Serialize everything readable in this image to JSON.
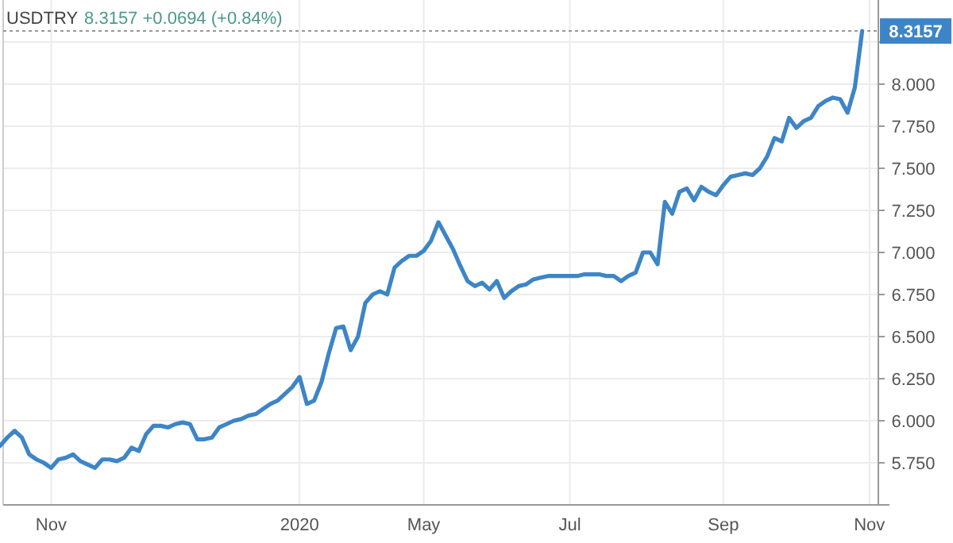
{
  "chart_data": {
    "type": "line",
    "title": "USDTRY",
    "subtitle": "8.3157 +0.0694 (+0.84%)",
    "categories": [
      null,
      null,
      null,
      null,
      null,
      null,
      null,
      "Nov",
      null,
      null,
      null,
      null,
      null,
      null,
      null,
      null,
      null,
      null,
      null,
      null,
      null,
      null,
      null,
      null,
      null,
      null,
      null,
      null,
      null,
      null,
      null,
      null,
      null,
      null,
      null,
      null,
      null,
      null,
      null,
      null,
      null,
      "2020",
      null,
      null,
      null,
      null,
      null,
      null,
      null,
      null,
      null,
      null,
      null,
      null,
      null,
      null,
      null,
      null,
      "May",
      null,
      null,
      null,
      null,
      null,
      null,
      null,
      null,
      null,
      null,
      null,
      null,
      null,
      null,
      null,
      null,
      null,
      null,
      null,
      "Jul",
      null,
      null,
      null,
      null,
      null,
      null,
      null,
      null,
      null,
      null,
      null,
      null,
      null,
      null,
      null,
      null,
      null,
      null,
      null,
      null,
      "Sep",
      null,
      null,
      null,
      null,
      null,
      null,
      null,
      null,
      null,
      null,
      null,
      null,
      null,
      null,
      null,
      null,
      null,
      null,
      null,
      "Nov"
    ],
    "series": [
      {
        "color": "#3d85c6",
        "values": [
          5.85,
          5.9,
          5.94,
          5.9,
          5.8,
          5.77,
          5.75,
          5.72,
          5.77,
          5.78,
          5.8,
          5.76,
          5.74,
          5.72,
          5.77,
          5.77,
          5.76,
          5.78,
          5.84,
          5.82,
          5.92,
          5.97,
          5.97,
          5.96,
          5.98,
          5.99,
          5.98,
          5.89,
          5.89,
          5.9,
          5.96,
          5.98,
          6.0,
          6.01,
          6.03,
          6.04,
          6.07,
          6.1,
          6.12,
          6.16,
          6.2,
          6.26,
          6.1,
          6.12,
          6.23,
          6.4,
          6.55,
          6.56,
          6.42,
          6.5,
          6.7,
          6.75,
          6.77,
          6.75,
          6.91,
          6.95,
          6.98,
          6.98,
          7.01,
          7.07,
          7.18,
          7.1,
          7.02,
          6.92,
          6.83,
          6.8,
          6.82,
          6.78,
          6.83,
          6.73,
          6.77,
          6.8,
          6.81,
          6.84,
          6.85,
          6.86,
          6.86,
          6.86,
          6.86,
          6.86,
          6.87,
          6.87,
          6.87,
          6.86,
          6.86,
          6.83,
          6.86,
          6.88,
          7.0,
          7.0,
          6.93,
          7.3,
          7.23,
          7.36,
          7.38,
          7.31,
          7.39,
          7.36,
          7.34,
          7.4,
          7.45,
          7.46,
          7.47,
          7.46,
          7.5,
          7.57,
          7.68,
          7.66,
          7.8,
          7.74,
          7.78,
          7.8,
          7.87,
          7.9,
          7.92,
          7.91,
          7.83,
          7.98,
          8.3157,
          null
        ],
        "value_labels": [
          null,
          null,
          null,
          null,
          null,
          null,
          null,
          null,
          null,
          null,
          null,
          null,
          null,
          null,
          null,
          null,
          null,
          null,
          null,
          null,
          null,
          null,
          null,
          null,
          null,
          null,
          null,
          null,
          null,
          null,
          null,
          null,
          null,
          null,
          null,
          null,
          null,
          null,
          null,
          null,
          null,
          null,
          null,
          null,
          null,
          null,
          null,
          null,
          null,
          null,
          null,
          null,
          null,
          null,
          null,
          null,
          null,
          null,
          null,
          null,
          null,
          null,
          null,
          null,
          null,
          null,
          null,
          null,
          null,
          null,
          null,
          null,
          null,
          null,
          null,
          null,
          null,
          null,
          null,
          null,
          null,
          null,
          null,
          null,
          null,
          null,
          null,
          null,
          null,
          null,
          null,
          null,
          null,
          null,
          null,
          null,
          null,
          null,
          null,
          null,
          null,
          null,
          null,
          null,
          null,
          null,
          null,
          null,
          null,
          null,
          null,
          null,
          null,
          null,
          null,
          null,
          null,
          null,
          "8.3157",
          null
        ]
      }
    ],
    "ylim": [
      5.5,
      8.5
    ],
    "yticks": [
      {
        "value": 5.75,
        "label": "5.750"
      },
      {
        "value": 6,
        "label": "6.000"
      },
      {
        "value": 6.25,
        "label": "6.250"
      },
      {
        "value": 6.5,
        "label": "6.500"
      },
      {
        "value": 6.75,
        "label": "6.750"
      },
      {
        "value": 7,
        "label": "7.000"
      },
      {
        "value": 7.25,
        "label": "7.250"
      },
      {
        "value": 7.5,
        "label": "7.500"
      },
      {
        "value": 7.75,
        "label": "7.750"
      },
      {
        "value": 8,
        "label": "8.000"
      },
      {
        "value": 8.25,
        "label": null
      }
    ],
    "ref_lines": [
      {
        "axis": "y",
        "value": 8.3157,
        "color": "#999999",
        "line_style": "dotted"
      }
    ],
    "grid": true,
    "marker": "none",
    "line_style": "solid"
  }
}
